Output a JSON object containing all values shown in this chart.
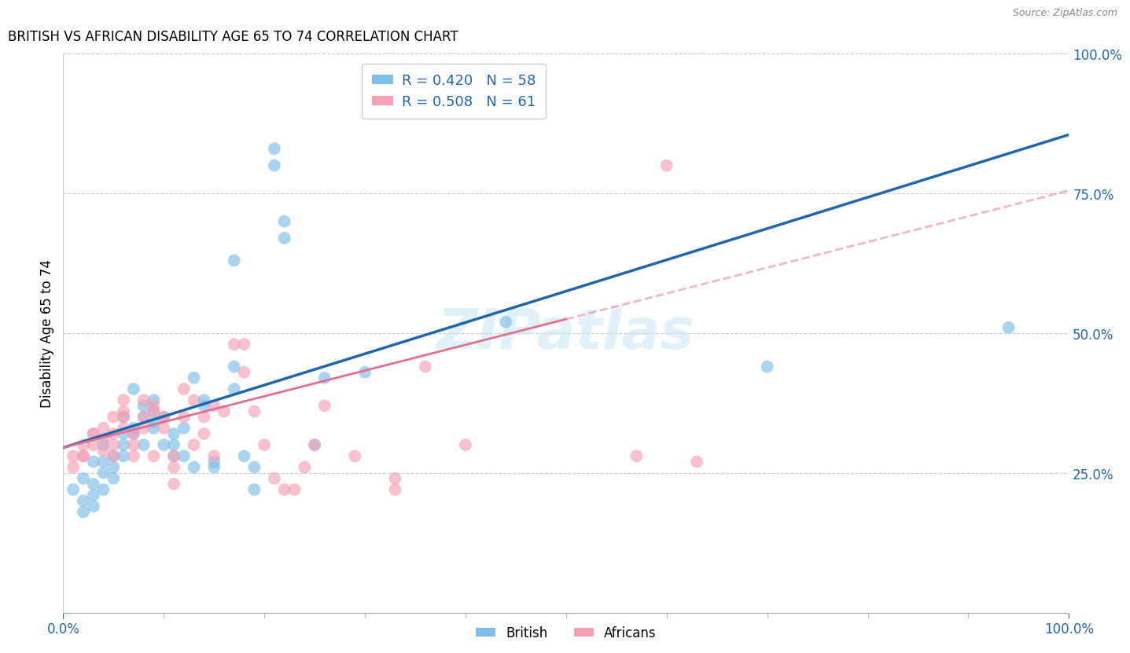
{
  "title": "BRITISH VS AFRICAN DISABILITY AGE 65 TO 74 CORRELATION CHART",
  "source": "Source: ZipAtlas.com",
  "ylabel": "Disability Age 65 to 74",
  "xlim": [
    0,
    1.0
  ],
  "ylim": [
    0,
    1.0
  ],
  "xtick_labels_shown": [
    "0.0%",
    "100.0%"
  ],
  "xtick_vals_shown": [
    0.0,
    1.0
  ],
  "xtick_minor_vals": [
    0.1,
    0.2,
    0.3,
    0.4,
    0.5,
    0.6,
    0.7,
    0.8,
    0.9
  ],
  "ytick_labels": [
    "25.0%",
    "50.0%",
    "75.0%",
    "100.0%"
  ],
  "ytick_vals": [
    0.25,
    0.5,
    0.75,
    1.0
  ],
  "british_R": 0.42,
  "british_N": 58,
  "african_R": 0.508,
  "african_N": 61,
  "british_color": "#7fbee8",
  "african_color": "#f4a0b5",
  "british_line_color": "#2166ac",
  "african_line_color": "#e07090",
  "watermark": "ZIPatlas",
  "british_points": [
    [
      0.01,
      0.22
    ],
    [
      0.02,
      0.2
    ],
    [
      0.02,
      0.18
    ],
    [
      0.02,
      0.24
    ],
    [
      0.03,
      0.21
    ],
    [
      0.03,
      0.23
    ],
    [
      0.03,
      0.19
    ],
    [
      0.03,
      0.27
    ],
    [
      0.04,
      0.25
    ],
    [
      0.04,
      0.27
    ],
    [
      0.04,
      0.22
    ],
    [
      0.04,
      0.3
    ],
    [
      0.05,
      0.26
    ],
    [
      0.05,
      0.28
    ],
    [
      0.05,
      0.24
    ],
    [
      0.06,
      0.3
    ],
    [
      0.06,
      0.32
    ],
    [
      0.06,
      0.35
    ],
    [
      0.06,
      0.28
    ],
    [
      0.07,
      0.4
    ],
    [
      0.07,
      0.32
    ],
    [
      0.07,
      0.33
    ],
    [
      0.08,
      0.35
    ],
    [
      0.08,
      0.37
    ],
    [
      0.08,
      0.3
    ],
    [
      0.09,
      0.34
    ],
    [
      0.09,
      0.36
    ],
    [
      0.09,
      0.38
    ],
    [
      0.09,
      0.33
    ],
    [
      0.1,
      0.35
    ],
    [
      0.1,
      0.3
    ],
    [
      0.11,
      0.28
    ],
    [
      0.11,
      0.3
    ],
    [
      0.11,
      0.32
    ],
    [
      0.12,
      0.33
    ],
    [
      0.12,
      0.28
    ],
    [
      0.13,
      0.26
    ],
    [
      0.13,
      0.42
    ],
    [
      0.14,
      0.38
    ],
    [
      0.14,
      0.37
    ],
    [
      0.15,
      0.27
    ],
    [
      0.15,
      0.26
    ],
    [
      0.17,
      0.4
    ],
    [
      0.17,
      0.44
    ],
    [
      0.17,
      0.63
    ],
    [
      0.18,
      0.28
    ],
    [
      0.19,
      0.26
    ],
    [
      0.19,
      0.22
    ],
    [
      0.21,
      0.8
    ],
    [
      0.21,
      0.83
    ],
    [
      0.22,
      0.7
    ],
    [
      0.22,
      0.67
    ],
    [
      0.25,
      0.3
    ],
    [
      0.26,
      0.42
    ],
    [
      0.3,
      0.43
    ],
    [
      0.44,
      0.52
    ],
    [
      0.94,
      0.51
    ],
    [
      0.7,
      0.44
    ]
  ],
  "african_points": [
    [
      0.01,
      0.28
    ],
    [
      0.01,
      0.26
    ],
    [
      0.02,
      0.28
    ],
    [
      0.02,
      0.28
    ],
    [
      0.02,
      0.3
    ],
    [
      0.03,
      0.32
    ],
    [
      0.03,
      0.32
    ],
    [
      0.03,
      0.3
    ],
    [
      0.04,
      0.33
    ],
    [
      0.04,
      0.29
    ],
    [
      0.04,
      0.31
    ],
    [
      0.05,
      0.35
    ],
    [
      0.05,
      0.28
    ],
    [
      0.05,
      0.3
    ],
    [
      0.05,
      0.32
    ],
    [
      0.06,
      0.38
    ],
    [
      0.06,
      0.33
    ],
    [
      0.06,
      0.35
    ],
    [
      0.06,
      0.36
    ],
    [
      0.07,
      0.3
    ],
    [
      0.07,
      0.32
    ],
    [
      0.07,
      0.28
    ],
    [
      0.08,
      0.33
    ],
    [
      0.08,
      0.38
    ],
    [
      0.08,
      0.35
    ],
    [
      0.09,
      0.36
    ],
    [
      0.09,
      0.37
    ],
    [
      0.09,
      0.28
    ],
    [
      0.1,
      0.33
    ],
    [
      0.1,
      0.35
    ],
    [
      0.11,
      0.28
    ],
    [
      0.11,
      0.23
    ],
    [
      0.11,
      0.26
    ],
    [
      0.12,
      0.4
    ],
    [
      0.12,
      0.35
    ],
    [
      0.13,
      0.38
    ],
    [
      0.13,
      0.3
    ],
    [
      0.14,
      0.32
    ],
    [
      0.14,
      0.35
    ],
    [
      0.15,
      0.37
    ],
    [
      0.15,
      0.28
    ],
    [
      0.16,
      0.36
    ],
    [
      0.17,
      0.48
    ],
    [
      0.18,
      0.48
    ],
    [
      0.18,
      0.43
    ],
    [
      0.19,
      0.36
    ],
    [
      0.2,
      0.3
    ],
    [
      0.21,
      0.24
    ],
    [
      0.22,
      0.22
    ],
    [
      0.23,
      0.22
    ],
    [
      0.24,
      0.26
    ],
    [
      0.25,
      0.3
    ],
    [
      0.26,
      0.37
    ],
    [
      0.29,
      0.28
    ],
    [
      0.33,
      0.22
    ],
    [
      0.33,
      0.24
    ],
    [
      0.36,
      0.44
    ],
    [
      0.4,
      0.3
    ],
    [
      0.57,
      0.28
    ],
    [
      0.6,
      0.8
    ],
    [
      0.63,
      0.27
    ]
  ],
  "british_line": {
    "x0": 0.0,
    "y0": 0.295,
    "x1": 1.0,
    "y1": 0.855
  },
  "african_line": {
    "x0": 0.0,
    "y0": 0.295,
    "x1": 1.0,
    "y1": 0.755
  },
  "african_line_dashed_start": 0.5
}
